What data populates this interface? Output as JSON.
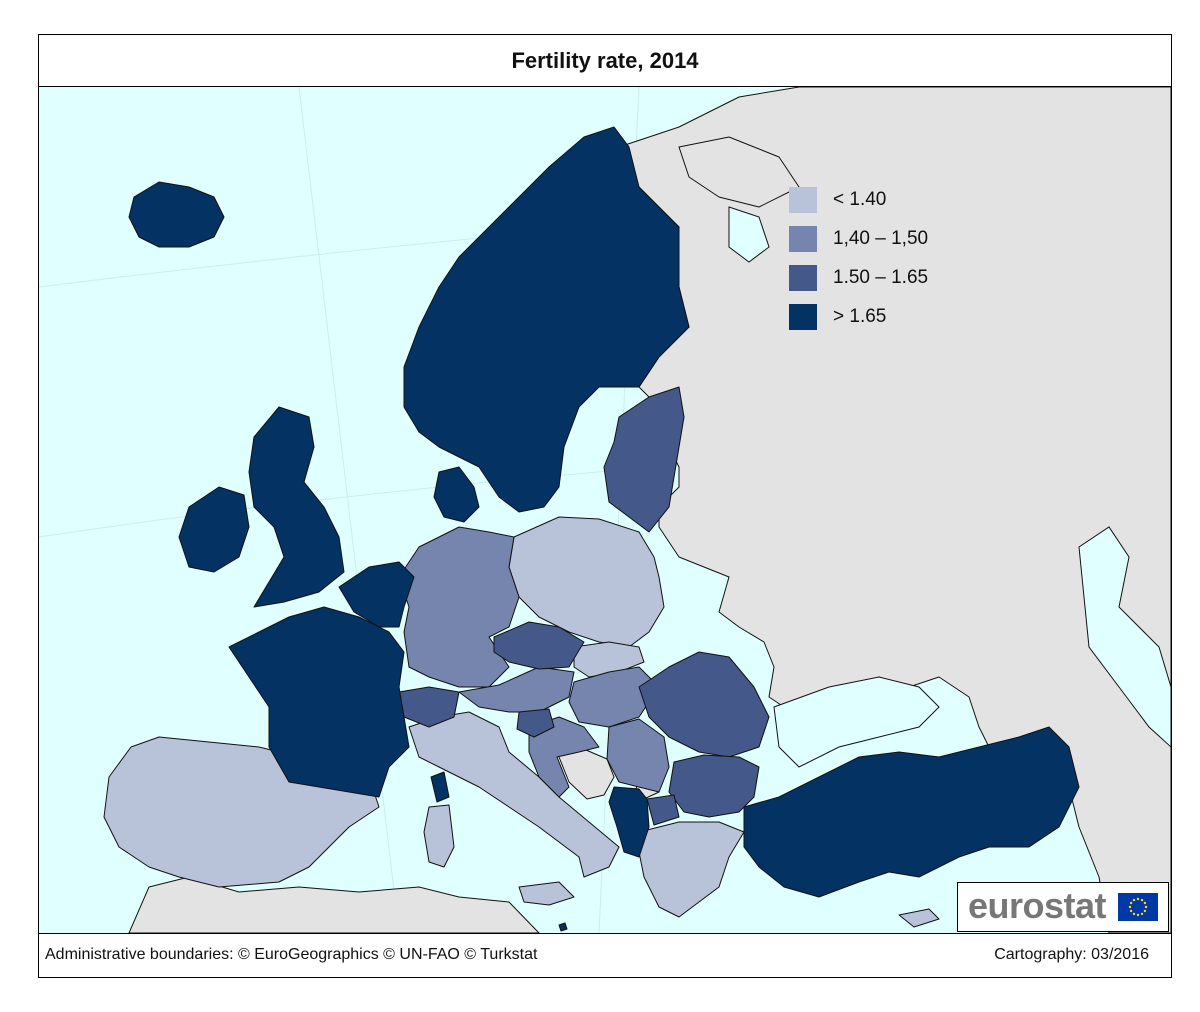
{
  "title": "Fertility rate, 2014",
  "legend": {
    "items": [
      {
        "label": "< 1.40",
        "color": "#b8c2d8"
      },
      {
        "label": "1,40 – 1,50",
        "color": "#7585ad"
      },
      {
        "label": "1.50 – 1.65",
        "color": "#445989"
      },
      {
        "label": "> 1.65",
        "color": "#043263"
      }
    ]
  },
  "colors": {
    "sea": "#e0ffff",
    "non_eu_land": "#e3e3e3",
    "border": "#111111"
  },
  "footer": {
    "source": "Administrative boundaries: © EuroGeographics © UN-FAO © Turkstat",
    "cartography": "Cartography: 03/2016"
  },
  "logo": {
    "text": "eurostat",
    "flag_icon": "eu-flag-icon"
  }
}
